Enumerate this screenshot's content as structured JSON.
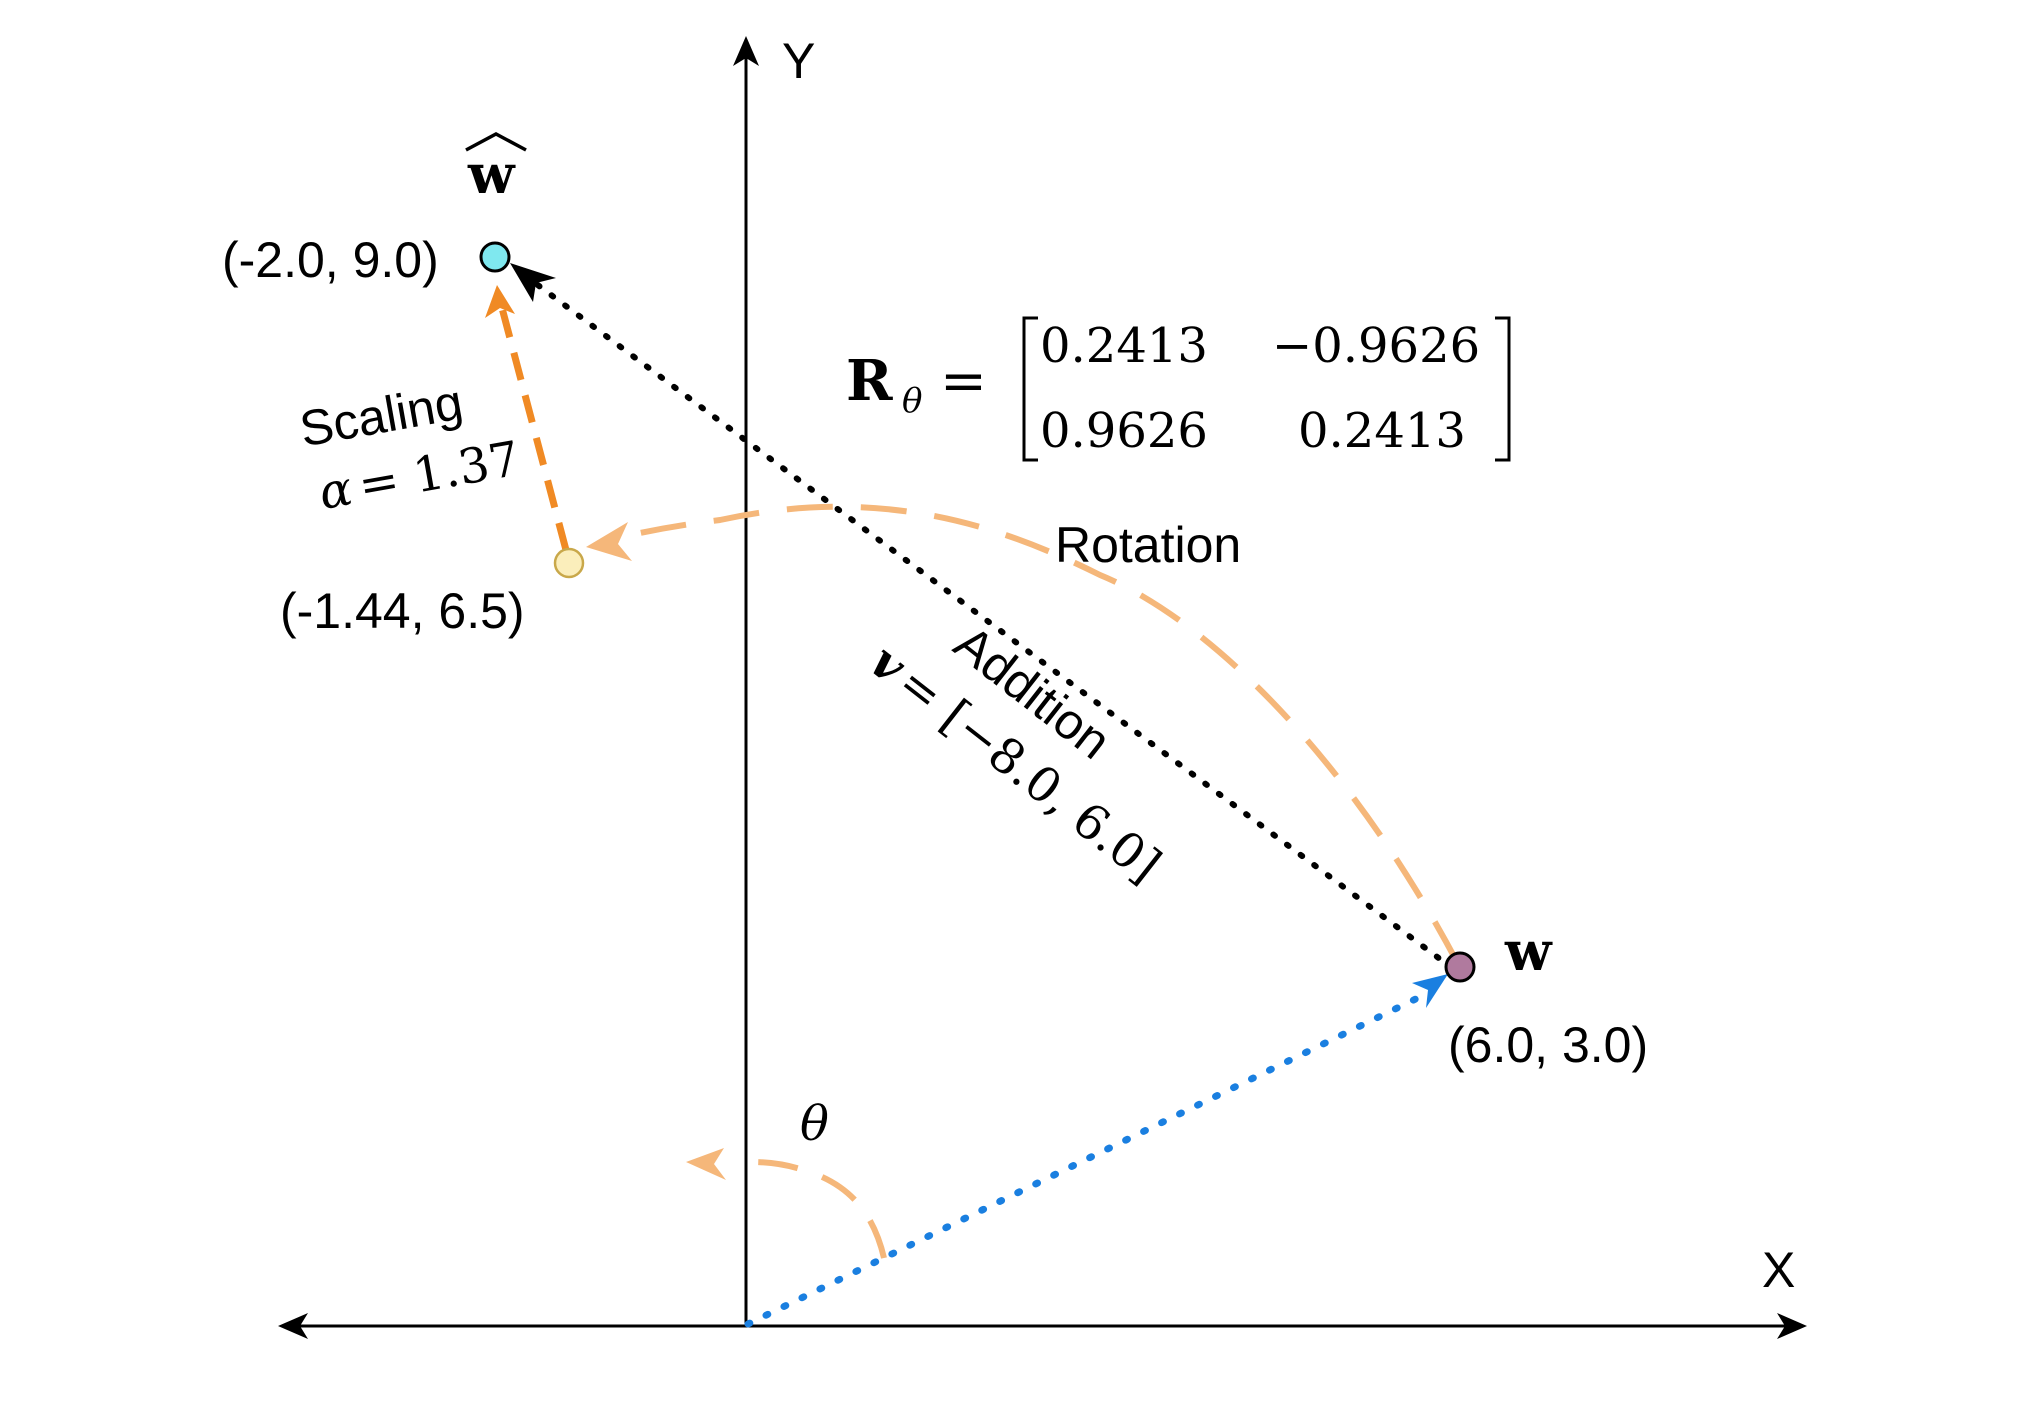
{
  "axes": {
    "x_label": "X",
    "y_label": "Y"
  },
  "points": {
    "w": {
      "name": "w",
      "coords": "(6.0, 3.0)",
      "color": "#b07a9e"
    },
    "w_hat": {
      "name": "w",
      "coords": "(-2.0, 9.0)",
      "color": "#7fe8ef"
    },
    "rotated": {
      "coords": "(-1.44, 6.5)",
      "color": "#fbeebb"
    }
  },
  "transforms": {
    "rotation": {
      "label": "Rotation",
      "matrix_symbol": "R",
      "matrix_subscript": "θ",
      "equals": "=",
      "matrix": [
        [
          "0.2413",
          "−0.9626"
        ],
        [
          "0.9626",
          "0.2413"
        ]
      ],
      "color": "#f5b77a"
    },
    "scaling": {
      "label": "Scaling",
      "param_symbol": "α",
      "param_text": "= 1.37",
      "color": "#f08a24"
    },
    "addition": {
      "label": "Addition",
      "vector_symbol": "v",
      "vector_text": "= [−8.0, 6.0]",
      "color": "#000000"
    },
    "angle": {
      "symbol": "θ",
      "color": "#f5b77a"
    }
  },
  "vectors": {
    "origin_to_w_color": "#1a7fe0"
  }
}
